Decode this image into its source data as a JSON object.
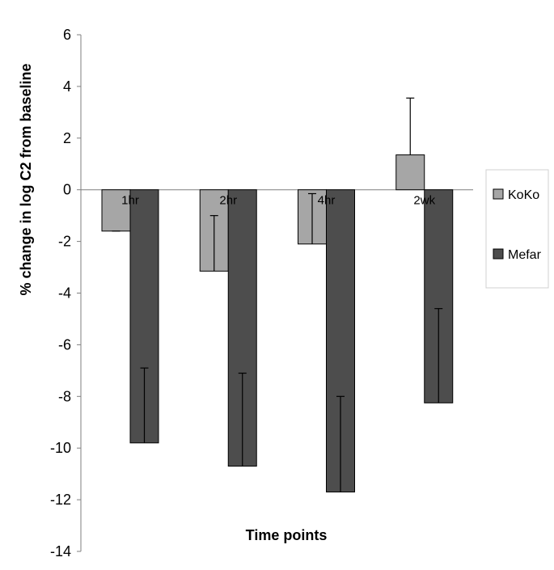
{
  "chart_data": {
    "type": "bar",
    "xlabel": "Time points",
    "ylabel": "% change in log C2 from baseline",
    "categories": [
      "1hr",
      "2hr",
      "4hr",
      "2wk"
    ],
    "ylim": [
      -14,
      6
    ],
    "y_ticks": [
      "6",
      "4",
      "2",
      "0",
      "-2",
      "-4",
      "-6",
      "-8",
      "-10",
      "-12",
      "-14"
    ],
    "grid": false,
    "legend_position": "right",
    "series": [
      {
        "name": "KoKo",
        "color": "#a6a6a6",
        "values": [
          -1.6,
          -3.15,
          -2.1,
          1.35
        ],
        "error_ends": [
          -1.6,
          -1.0,
          -0.15,
          3.55
        ]
      },
      {
        "name": "Mefar",
        "color": "#4d4d4d",
        "values": [
          -9.8,
          -10.7,
          -11.7,
          -8.25
        ],
        "error_ends": [
          -6.9,
          -7.1,
          -8.0,
          -4.6
        ]
      }
    ]
  }
}
